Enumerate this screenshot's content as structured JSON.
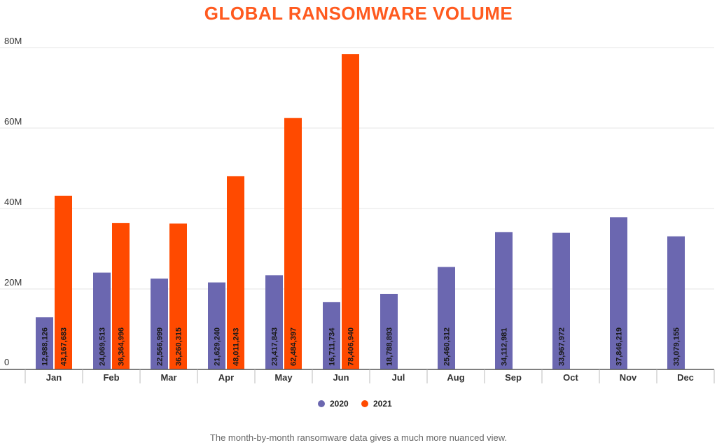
{
  "chart_data": {
    "type": "bar",
    "title": "GLOBAL RANSOMWARE VOLUME",
    "categories": [
      "Jan",
      "Feb",
      "Mar",
      "Apr",
      "May",
      "Jun",
      "Jul",
      "Aug",
      "Sep",
      "Oct",
      "Nov",
      "Dec"
    ],
    "series": [
      {
        "name": "2020",
        "color": "#6b67b0",
        "values": [
          12988126,
          24069513,
          22566999,
          21629240,
          23417843,
          16711734,
          18788893,
          25460312,
          34112981,
          33967972,
          37846219,
          33079155
        ],
        "labels": [
          "12,988,126",
          "24,069,513",
          "22,566,999",
          "21,629,240",
          "23,417,843",
          "16,711,734",
          "18,788,893",
          "25,460,312",
          "34,112,981",
          "33,967,972",
          "37,846,219",
          "33,079,155"
        ]
      },
      {
        "name": "2021",
        "color": "#ff4a00",
        "values": [
          43167683,
          36364996,
          36260315,
          48011243,
          62484397,
          78406940,
          null,
          null,
          null,
          null,
          null,
          null
        ],
        "labels": [
          "43,167,683",
          "36,364,996",
          "36,260,315",
          "48,011,243",
          "62,484,397",
          "78,406,940",
          "",
          "",
          "",
          "",
          "",
          ""
        ]
      }
    ],
    "y_ticks": [
      0,
      20000000,
      40000000,
      60000000,
      80000000
    ],
    "y_tick_labels": [
      "0",
      "20M",
      "40M",
      "60M",
      "80M"
    ],
    "ylim": [
      0,
      80000000
    ],
    "legend_position": "bottom-center",
    "grid": true,
    "title_color": "#ff5a1f",
    "caption": "The month-by-month ransomware data gives a much more nuanced view."
  }
}
